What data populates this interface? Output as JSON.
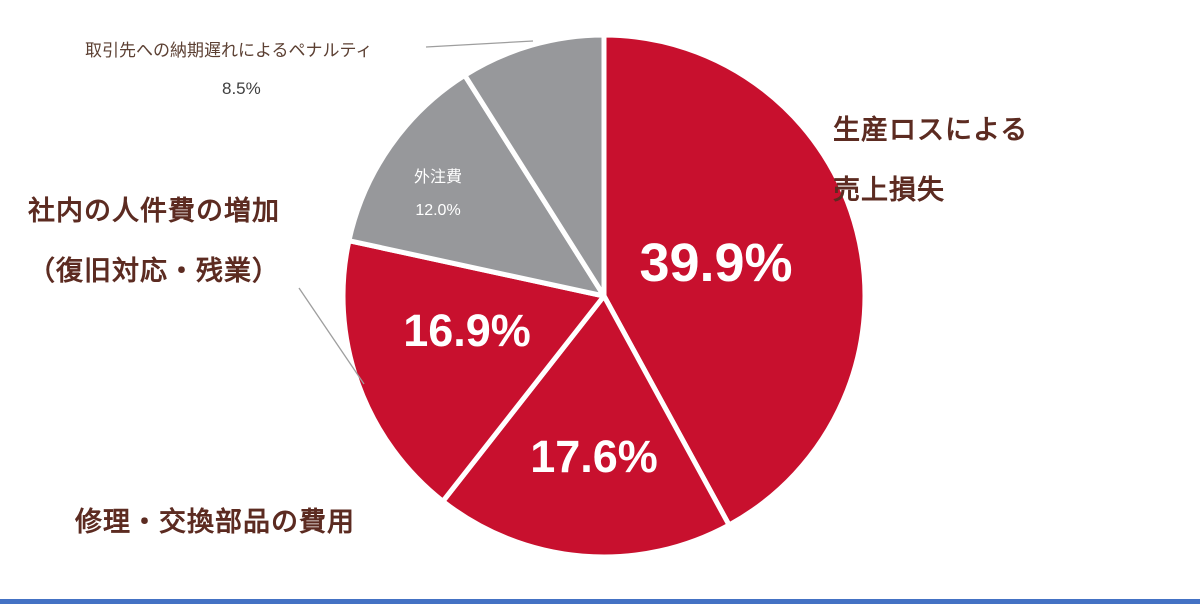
{
  "chart_data": {
    "type": "pie",
    "title": "",
    "legend_position": "none",
    "direction": "clockwise",
    "start_angle_deg": 0,
    "slices": [
      {
        "name": "生産ロスによる売上損失",
        "name_lines": [
          "生産ロスによる",
          "売上損失"
        ],
        "value": 39.9,
        "display": "39.9%",
        "color": "#c8102e"
      },
      {
        "name": "修理・交換部品の費用",
        "name_lines": [
          "修理・交換部品の費用"
        ],
        "value": 17.6,
        "display": "17.6%",
        "color": "#c8102e"
      },
      {
        "name": "社内の人件費の増加（復旧対応・残業）",
        "name_lines": [
          "社内の人件費の増加",
          "（復旧対応・残業）"
        ],
        "value": 16.9,
        "display": "16.9%",
        "color": "#c8102e"
      },
      {
        "name": "外注費",
        "name_lines": [
          "外注費"
        ],
        "value": 12.0,
        "display": "12.0%",
        "color": "#97989b"
      },
      {
        "name": "取引先への納期遅れによるペナルティ",
        "name_lines": [
          "取引先への納期遅れによるペナルティ"
        ],
        "value": 8.5,
        "display": "8.5%",
        "color": "#97989b"
      }
    ]
  },
  "colors": {
    "red": "#c8102e",
    "gray": "#97989b",
    "outer_label_text": "#5c2b21",
    "small_label_text": "#5c4033",
    "percent_dark_text": "#3f3f3f",
    "slice_divider": "#ffffff",
    "leader_line": "#9e9e9e",
    "accent_bar": "#4472c4",
    "background": "#ffffff"
  }
}
